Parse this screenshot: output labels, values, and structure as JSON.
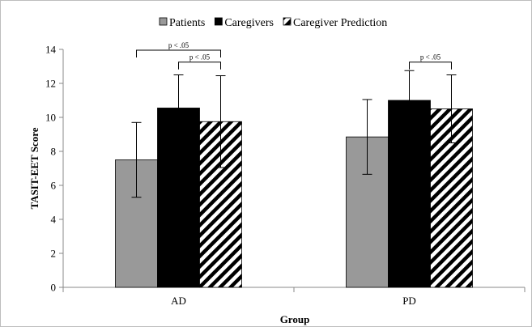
{
  "chart_data": {
    "type": "bar",
    "categories": [
      "AD",
      "PD"
    ],
    "series": [
      {
        "name": "Patients",
        "values": [
          7.5,
          8.85
        ],
        "error": [
          2.2,
          2.2
        ],
        "color": "#999999",
        "pattern": "solid"
      },
      {
        "name": "Caregivers",
        "values": [
          10.55,
          11.0
        ],
        "error": [
          1.95,
          1.75
        ],
        "color": "#000000",
        "pattern": "solid"
      },
      {
        "name": "Caregiver Prediction",
        "values": [
          9.75,
          10.5
        ],
        "error": [
          2.7,
          2.0
        ],
        "color": "#000000",
        "pattern": "diagonal-stripes"
      }
    ],
    "xlabel": "Group",
    "ylabel": "TASIT-EET Score",
    "ylim": [
      0,
      14
    ],
    "yticks": [
      0,
      2,
      4,
      6,
      8,
      10,
      12,
      14
    ],
    "grid": false,
    "legend_position": "top",
    "significance": [
      {
        "category": "AD",
        "from": "Patients",
        "to": "Caregiver Prediction",
        "label": "p < .05",
        "level": 14.0
      },
      {
        "category": "AD",
        "from": "Caregivers",
        "to": "Caregiver Prediction",
        "label": "p < .05",
        "level": 13.3
      },
      {
        "category": "PD",
        "from": "Caregivers",
        "to": "Caregiver Prediction",
        "label": "p < .05",
        "level": 13.3
      }
    ]
  }
}
